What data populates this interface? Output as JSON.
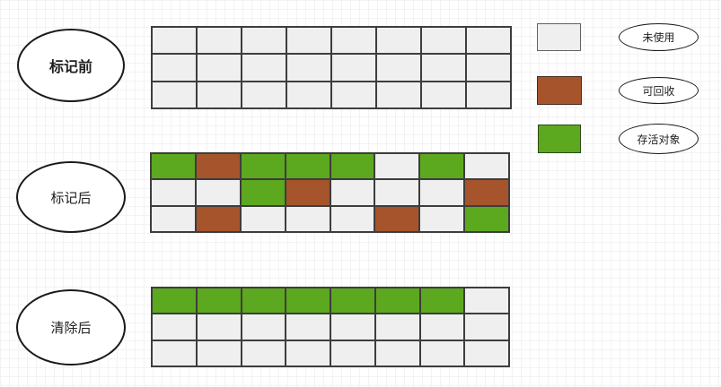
{
  "diagram": {
    "stages": [
      {
        "id": "before_mark",
        "label": "标记前"
      },
      {
        "id": "after_mark",
        "label": "标记后"
      },
      {
        "id": "after_sweep",
        "label": "清除后"
      }
    ],
    "legend": [
      {
        "type": "unused",
        "label": "未使用"
      },
      {
        "type": "reclaimable",
        "label": "可回收"
      },
      {
        "type": "live",
        "label": "存活对象"
      }
    ]
  },
  "colors": {
    "unused": "#efefef",
    "reclaimable": "#a5542c",
    "live": "#5ca81e",
    "cell_border": "#3d3d3d"
  },
  "cell_types": {
    "U": "unused",
    "R": "reclaimable",
    "L": "live"
  },
  "grids": {
    "before_mark": [
      [
        "U",
        "U",
        "U",
        "U",
        "U",
        "U",
        "U",
        "U"
      ],
      [
        "U",
        "U",
        "U",
        "U",
        "U",
        "U",
        "U",
        "U"
      ],
      [
        "U",
        "U",
        "U",
        "U",
        "U",
        "U",
        "U",
        "U"
      ]
    ],
    "after_mark": [
      [
        "L",
        "R",
        "L",
        "L",
        "L",
        "U",
        "L",
        "U"
      ],
      [
        "U",
        "U",
        "L",
        "R",
        "U",
        "U",
        "U",
        "R"
      ],
      [
        "U",
        "R",
        "U",
        "U",
        "U",
        "R",
        "U",
        "L"
      ]
    ],
    "after_sweep": [
      [
        "L",
        "L",
        "L",
        "L",
        "L",
        "L",
        "L",
        "U"
      ],
      [
        "U",
        "U",
        "U",
        "U",
        "U",
        "U",
        "U",
        "U"
      ],
      [
        "U",
        "U",
        "U",
        "U",
        "U",
        "U",
        "U",
        "U"
      ]
    ]
  }
}
